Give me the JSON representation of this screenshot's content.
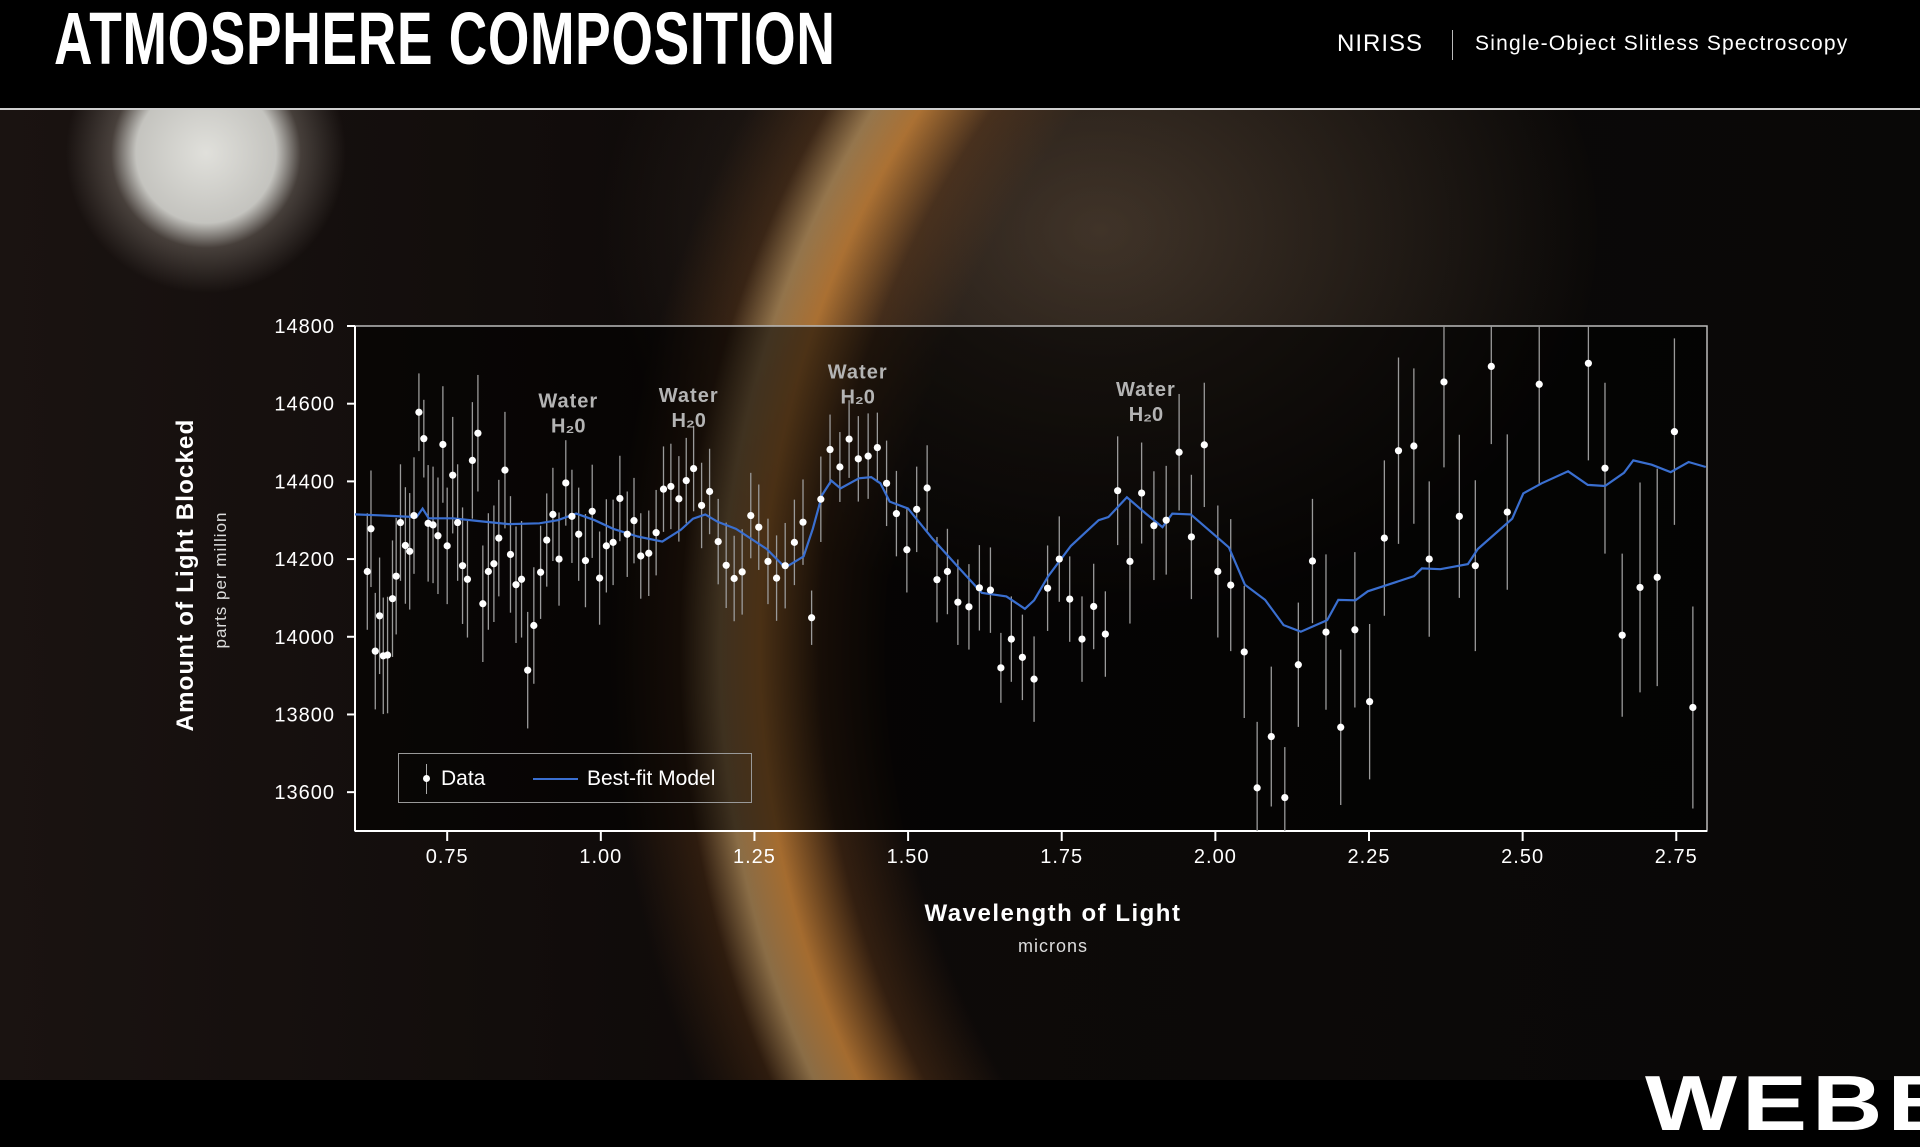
{
  "header": {
    "title": "ATMOSPHERE COMPOSITION",
    "instrument": "NIRISS",
    "mode": "Single-Object Slitless Spectroscopy"
  },
  "logo": "WEBB",
  "chart_data": {
    "type": "scatter",
    "xlabel": "Wavelength of Light",
    "xunit": "microns",
    "ylabel": "Amount of Light Blocked",
    "yunit": "parts per million",
    "xlim": [
      0.6,
      2.8
    ],
    "ylim": [
      13500,
      14800
    ],
    "xticks": [
      0.75,
      1.0,
      1.25,
      1.5,
      1.75,
      2.0,
      2.25,
      2.5,
      2.75
    ],
    "xtick_labels": [
      "0.75",
      "1.00",
      "1.25",
      "1.50",
      "1.75",
      "2.00",
      "2.25",
      "2.50",
      "2.75"
    ],
    "yticks": [
      13600,
      13800,
      14000,
      14200,
      14400,
      14600,
      14800
    ],
    "ytick_labels": [
      "13600",
      "13800",
      "14000",
      "14200",
      "14400",
      "14600",
      "14800"
    ],
    "grid": false,
    "legend": {
      "position": "bottom-left",
      "data_label": "Data",
      "model_label": "Best-fit Model"
    },
    "colors": {
      "data": "#ffffff",
      "model": "#3a6fd0",
      "errorbar": "#9a9a9a",
      "annotation": "#b4b4b4"
    },
    "annotations": [
      {
        "x": 0.947,
        "y": 14590,
        "label": "Water",
        "formula": "H₂0"
      },
      {
        "x": 1.143,
        "y": 14605,
        "label": "Water",
        "formula": "H₂0"
      },
      {
        "x": 1.418,
        "y": 14665,
        "label": "Water",
        "formula": "H₂0"
      },
      {
        "x": 1.887,
        "y": 14620,
        "label": "Water",
        "formula": "H₂0"
      }
    ],
    "series": [
      {
        "name": "Data",
        "kind": "points_with_error",
        "points": [
          [
            0.62,
            14168,
            150
          ],
          [
            0.626,
            14278,
            150
          ],
          [
            0.633,
            13963,
            150
          ],
          [
            0.64,
            14054,
            150
          ],
          [
            0.646,
            13951,
            150
          ],
          [
            0.653,
            13953,
            150
          ],
          [
            0.661,
            14098,
            150
          ],
          [
            0.667,
            14156,
            150
          ],
          [
            0.674,
            14294,
            150
          ],
          [
            0.682,
            14235,
            150
          ],
          [
            0.689,
            14220,
            150
          ],
          [
            0.696,
            14312,
            150
          ],
          [
            0.704,
            14578,
            100
          ],
          [
            0.712,
            14510,
            100
          ],
          [
            0.719,
            14292,
            150
          ],
          [
            0.727,
            14288,
            150
          ],
          [
            0.735,
            14260,
            150
          ],
          [
            0.743,
            14495,
            150
          ],
          [
            0.75,
            14234,
            150
          ],
          [
            0.759,
            14416,
            150
          ],
          [
            0.767,
            14294,
            150
          ],
          [
            0.775,
            14183,
            150
          ],
          [
            0.783,
            14148,
            150
          ],
          [
            0.791,
            14454,
            150
          ],
          [
            0.8,
            14524,
            150
          ],
          [
            0.808,
            14085,
            150
          ],
          [
            0.817,
            14168,
            150
          ],
          [
            0.826,
            14188,
            150
          ],
          [
            0.834,
            14254,
            150
          ],
          [
            0.844,
            14429,
            150
          ],
          [
            0.853,
            14212,
            150
          ],
          [
            0.862,
            14134,
            150
          ],
          [
            0.871,
            14148,
            150
          ],
          [
            0.881,
            13914,
            150
          ],
          [
            0.891,
            14029,
            150
          ],
          [
            0.902,
            14166,
            120
          ],
          [
            0.912,
            14249,
            120
          ],
          [
            0.922,
            14315,
            120
          ],
          [
            0.932,
            14200,
            120
          ],
          [
            0.943,
            14396,
            110
          ],
          [
            0.953,
            14310,
            120
          ],
          [
            0.964,
            14264,
            120
          ],
          [
            0.975,
            14196,
            120
          ],
          [
            0.986,
            14323,
            120
          ],
          [
            0.998,
            14151,
            120
          ],
          [
            1.009,
            14234,
            120
          ],
          [
            1.02,
            14243,
            110
          ],
          [
            1.031,
            14356,
            110
          ],
          [
            1.043,
            14264,
            110
          ],
          [
            1.054,
            14299,
            110
          ],
          [
            1.065,
            14208,
            110
          ],
          [
            1.078,
            14215,
            110
          ],
          [
            1.09,
            14268,
            110
          ],
          [
            1.102,
            14380,
            110
          ],
          [
            1.114,
            14387,
            110
          ],
          [
            1.127,
            14355,
            110
          ],
          [
            1.139,
            14402,
            110
          ],
          [
            1.151,
            14433,
            110
          ],
          [
            1.164,
            14338,
            110
          ],
          [
            1.177,
            14374,
            110
          ],
          [
            1.191,
            14245,
            110
          ],
          [
            1.204,
            14184,
            110
          ],
          [
            1.217,
            14150,
            110
          ],
          [
            1.23,
            14167,
            110
          ],
          [
            1.244,
            14312,
            110
          ],
          [
            1.257,
            14282,
            110
          ],
          [
            1.272,
            14194,
            110
          ],
          [
            1.286,
            14151,
            110
          ],
          [
            1.3,
            14183,
            110
          ],
          [
            1.315,
            14243,
            110
          ],
          [
            1.329,
            14295,
            110
          ],
          [
            1.343,
            14049,
            70
          ],
          [
            1.358,
            14354,
            110
          ],
          [
            1.373,
            14482,
            90
          ],
          [
            1.389,
            14437,
            90
          ],
          [
            1.404,
            14509,
            100
          ],
          [
            1.419,
            14458,
            110
          ],
          [
            1.435,
            14465,
            110
          ],
          [
            1.45,
            14487,
            90
          ],
          [
            1.465,
            14395,
            110
          ],
          [
            1.481,
            14317,
            110
          ],
          [
            1.498,
            14224,
            110
          ],
          [
            1.514,
            14328,
            110
          ],
          [
            1.531,
            14383,
            110
          ],
          [
            1.547,
            14147,
            110
          ],
          [
            1.564,
            14168,
            110
          ],
          [
            1.581,
            14089,
            110
          ],
          [
            1.599,
            14077,
            110
          ],
          [
            1.616,
            14126,
            110
          ],
          [
            1.634,
            14120,
            110
          ],
          [
            1.651,
            13920,
            90
          ],
          [
            1.668,
            13994,
            110
          ],
          [
            1.686,
            13947,
            110
          ],
          [
            1.705,
            13891,
            110
          ],
          [
            1.727,
            14125,
            110
          ],
          [
            1.746,
            14200,
            110
          ],
          [
            1.763,
            14097,
            110
          ],
          [
            1.783,
            13994,
            110
          ],
          [
            1.802,
            14078,
            110
          ],
          [
            1.821,
            14007,
            110
          ],
          [
            1.841,
            14376,
            140
          ],
          [
            1.861,
            14194,
            160
          ],
          [
            1.88,
            14370,
            130
          ],
          [
            1.9,
            14286,
            140
          ],
          [
            1.92,
            14300,
            140
          ],
          [
            1.941,
            14475,
            150
          ],
          [
            1.961,
            14257,
            160
          ],
          [
            1.982,
            14494,
            160
          ],
          [
            2.004,
            14168,
            170
          ],
          [
            2.025,
            14133,
            170
          ],
          [
            2.047,
            13961,
            170
          ],
          [
            2.068,
            13611,
            170
          ],
          [
            2.091,
            13743,
            180
          ],
          [
            2.113,
            13586,
            130
          ],
          [
            2.135,
            13928,
            160
          ],
          [
            2.158,
            14195,
            160
          ],
          [
            2.18,
            14012,
            200
          ],
          [
            2.204,
            13767,
            200
          ],
          [
            2.227,
            14018,
            200
          ],
          [
            2.251,
            13833,
            200
          ],
          [
            2.275,
            14254,
            200
          ],
          [
            2.298,
            14479,
            240
          ],
          [
            2.323,
            14491,
            200
          ],
          [
            2.348,
            14200,
            200
          ],
          [
            2.372,
            14656,
            220
          ],
          [
            2.397,
            14310,
            210
          ],
          [
            2.423,
            14183,
            220
          ],
          [
            2.449,
            14696,
            200
          ],
          [
            2.475,
            14321,
            200
          ],
          [
            2.527,
            14650,
            260
          ],
          [
            2.607,
            14704,
            250
          ],
          [
            2.634,
            14434,
            220
          ],
          [
            2.662,
            14004,
            210
          ],
          [
            2.691,
            14127,
            270
          ],
          [
            2.719,
            14153,
            280
          ],
          [
            2.747,
            14528,
            240
          ],
          [
            2.777,
            13818,
            260
          ]
        ]
      },
      {
        "name": "Best-fit Model",
        "kind": "line",
        "points": [
          [
            0.6,
            14315
          ],
          [
            0.65,
            14312
          ],
          [
            0.7,
            14308
          ],
          [
            0.71,
            14330
          ],
          [
            0.72,
            14305
          ],
          [
            0.76,
            14305
          ],
          [
            0.8,
            14298
          ],
          [
            0.85,
            14290
          ],
          [
            0.9,
            14292
          ],
          [
            0.93,
            14300
          ],
          [
            0.96,
            14317
          ],
          [
            0.99,
            14300
          ],
          [
            1.02,
            14278
          ],
          [
            1.06,
            14258
          ],
          [
            1.1,
            14245
          ],
          [
            1.13,
            14275
          ],
          [
            1.15,
            14304
          ],
          [
            1.17,
            14315
          ],
          [
            1.19,
            14296
          ],
          [
            1.22,
            14278
          ],
          [
            1.27,
            14226
          ],
          [
            1.3,
            14178
          ],
          [
            1.33,
            14207
          ],
          [
            1.345,
            14278
          ],
          [
            1.36,
            14365
          ],
          [
            1.375,
            14402
          ],
          [
            1.39,
            14382
          ],
          [
            1.42,
            14408
          ],
          [
            1.44,
            14411
          ],
          [
            1.455,
            14395
          ],
          [
            1.47,
            14348
          ],
          [
            1.5,
            14330
          ],
          [
            1.54,
            14252
          ],
          [
            1.58,
            14182
          ],
          [
            1.62,
            14113
          ],
          [
            1.66,
            14104
          ],
          [
            1.69,
            14072
          ],
          [
            1.705,
            14094
          ],
          [
            1.728,
            14156
          ],
          [
            1.765,
            14234
          ],
          [
            1.81,
            14300
          ],
          [
            1.826,
            14308
          ],
          [
            1.856,
            14359
          ],
          [
            1.887,
            14317
          ],
          [
            1.914,
            14282
          ],
          [
            1.93,
            14317
          ],
          [
            1.96,
            14315
          ],
          [
            2.022,
            14230
          ],
          [
            2.048,
            14134
          ],
          [
            2.081,
            14095
          ],
          [
            2.111,
            14030
          ],
          [
            2.139,
            14013
          ],
          [
            2.182,
            14043
          ],
          [
            2.2,
            14095
          ],
          [
            2.228,
            14094
          ],
          [
            2.248,
            14117
          ],
          [
            2.323,
            14156
          ],
          [
            2.336,
            14176
          ],
          [
            2.366,
            14174
          ],
          [
            2.411,
            14187
          ],
          [
            2.427,
            14226
          ],
          [
            2.483,
            14304
          ],
          [
            2.501,
            14369
          ],
          [
            2.531,
            14395
          ],
          [
            2.574,
            14426
          ],
          [
            2.606,
            14391
          ],
          [
            2.634,
            14388
          ],
          [
            2.665,
            14422
          ],
          [
            2.68,
            14454
          ],
          [
            2.71,
            14443
          ],
          [
            2.741,
            14424
          ],
          [
            2.77,
            14450
          ],
          [
            2.798,
            14437
          ]
        ]
      }
    ]
  }
}
